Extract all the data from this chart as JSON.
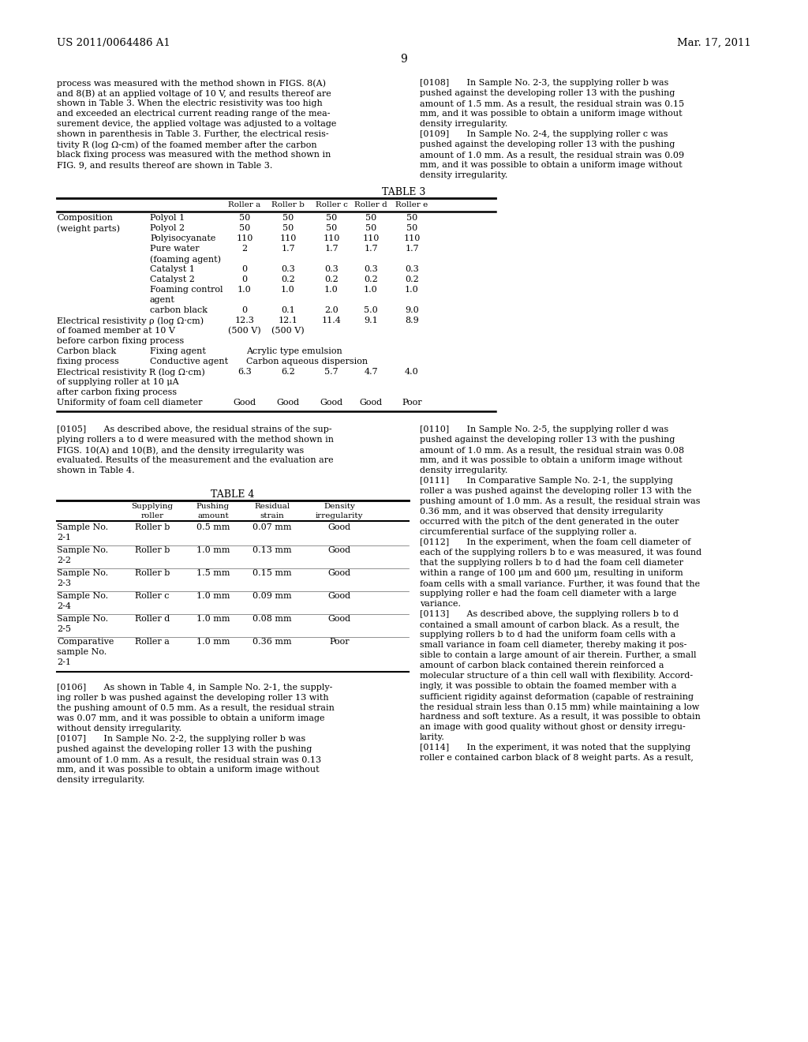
{
  "header_left": "US 2011/0064486 A1",
  "header_right": "Mar. 17, 2011",
  "page_number": "9",
  "bg_color": "#ffffff",
  "left_col_text": [
    "process was measured with the method shown in FIGS. 8(A)",
    "and 8(B) at an applied voltage of 10 V, and results thereof are",
    "shown in Table 3. When the electric resistivity was too high",
    "and exceeded an electrical current reading range of the mea-",
    "surement device, the applied voltage was adjusted to a voltage",
    "shown in parenthesis in Table 3. Further, the electrical resis-",
    "tivity R (log Ω-cm) of the foamed member after the carbon",
    "black fixing process was measured with the method shown in",
    "FIG. 9, and results thereof are shown in Table 3."
  ],
  "right_col_text_1": [
    "[0108]  In Sample No. 2-3, the supplying roller b was",
    "pushed against the developing roller 13 with the pushing",
    "amount of 1.5 mm. As a result, the residual strain was 0.15",
    "mm, and it was possible to obtain a uniform image without",
    "density irregularity.",
    "[0109]  In Sample No. 2-4, the supplying roller c was",
    "pushed against the developing roller 13 with the pushing",
    "amount of 1.0 mm. As a result, the residual strain was 0.09",
    "mm, and it was possible to obtain a uniform image without",
    "density irregularity."
  ],
  "table3_title": "TABLE 3",
  "table3_rows": [
    [
      "Composition",
      "Polyol 1",
      "50",
      "50",
      "50",
      "50",
      "50"
    ],
    [
      "(weight parts)",
      "Polyol 2",
      "50",
      "50",
      "50",
      "50",
      "50"
    ],
    [
      "",
      "Polyisocyanate",
      "110",
      "110",
      "110",
      "110",
      "110"
    ],
    [
      "",
      "Pure water",
      "2",
      "1.7",
      "1.7",
      "1.7",
      "1.7"
    ],
    [
      "",
      "(foaming agent)",
      "",
      "",
      "",
      "",
      ""
    ],
    [
      "",
      "Catalyst 1",
      "0",
      "0.3",
      "0.3",
      "0.3",
      "0.3"
    ],
    [
      "",
      "Catalyst 2",
      "0",
      "0.2",
      "0.2",
      "0.2",
      "0.2"
    ],
    [
      "",
      "Foaming control",
      "1.0",
      "1.0",
      "1.0",
      "1.0",
      "1.0"
    ],
    [
      "",
      "agent",
      "",
      "",
      "",
      "",
      ""
    ],
    [
      "",
      "carbon black",
      "0",
      "0.1",
      "2.0",
      "5.0",
      "9.0"
    ]
  ],
  "table3_resistivity_vals": [
    "12.3",
    "12.1",
    "11.4",
    "9.1",
    "8.9"
  ],
  "table3_resistivity_note": [
    "(500 V)",
    "(500 V)",
    "",
    "",
    ""
  ],
  "table3_elec_resist_vals": [
    "6.3",
    "6.2",
    "5.7",
    "4.7",
    "4.0"
  ],
  "table3_uniformity_vals": [
    "Good",
    "Good",
    "Good",
    "Good",
    "Poor"
  ],
  "table4_title": "TABLE 4",
  "table4_rows": [
    [
      "Sample No.",
      "Roller b",
      "0.5 mm",
      "0.07 mm",
      "Good"
    ],
    [
      "2-1",
      "",
      "",
      "",
      ""
    ],
    [
      "Sample No.",
      "Roller b",
      "1.0 mm",
      "0.13 mm",
      "Good"
    ],
    [
      "2-2",
      "",
      "",
      "",
      ""
    ],
    [
      "Sample No.",
      "Roller b",
      "1.5 mm",
      "0.15 mm",
      "Good"
    ],
    [
      "2-3",
      "",
      "",
      "",
      ""
    ],
    [
      "Sample No.",
      "Roller c",
      "1.0 mm",
      "0.09 mm",
      "Good"
    ],
    [
      "2-4",
      "",
      "",
      "",
      ""
    ],
    [
      "Sample No.",
      "Roller d",
      "1.0 mm",
      "0.08 mm",
      "Good"
    ],
    [
      "2-5",
      "",
      "",
      "",
      ""
    ],
    [
      "Comparative",
      "Roller a",
      "1.0 mm",
      "0.36 mm",
      "Poor"
    ],
    [
      "sample No.",
      "",
      "",
      "",
      ""
    ],
    [
      "2-1",
      "",
      "",
      "",
      ""
    ]
  ],
  "right_col_text_2": [
    "[0110]  In Sample No. 2-5, the supplying roller d was",
    "pushed against the developing roller 13 with the pushing",
    "amount of 1.0 mm. As a result, the residual strain was 0.08",
    "mm, and it was possible to obtain a uniform image without",
    "density irregularity.",
    "[0111]  In Comparative Sample No. 2-1, the supplying",
    "roller a was pushed against the developing roller 13 with the",
    "pushing amount of 1.0 mm. As a result, the residual strain was",
    "0.36 mm, and it was observed that density irregularity",
    "occurred with the pitch of the dent generated in the outer",
    "circumferential surface of the supplying roller a.",
    "[0112]  In the experiment, when the foam cell diameter of",
    "each of the supplying rollers b to e was measured, it was found",
    "that the supplying rollers b to d had the foam cell diameter",
    "within a range of 100 μm and 600 μm, resulting in uniform",
    "foam cells with a small variance. Further, it was found that the",
    "supplying roller e had the foam cell diameter with a large",
    "variance.",
    "[0113]  As described above, the supplying rollers b to d",
    "contained a small amount of carbon black. As a result, the",
    "supplying rollers b to d had the uniform foam cells with a",
    "small variance in foam cell diameter, thereby making it pos-",
    "sible to contain a large amount of air therein. Further, a small",
    "amount of carbon black contained therein reinforced a",
    "molecular structure of a thin cell wall with flexibility. Accord-",
    "ingly, it was possible to obtain the foamed member with a",
    "sufficient rigidity against deformation (capable of restraining",
    "the residual strain less than 0.15 mm) while maintaining a low",
    "hardness and soft texture. As a result, it was possible to obtain",
    "an image with good quality without ghost or density irregu-",
    "larity.",
    "[0114]  In the experiment, it was noted that the supplying",
    "roller e contained carbon black of 8 weight parts. As a result,"
  ],
  "left_col_text_2": [
    "[0106]  As shown in Table 4, in Sample No. 2-1, the supply-",
    "ing roller b was pushed against the developing roller 13 with",
    "the pushing amount of 0.5 mm. As a result, the residual strain",
    "was 0.07 mm, and it was possible to obtain a uniform image",
    "without density irregularity.",
    "[0107]  In Sample No. 2-2, the supplying roller b was",
    "pushed against the developing roller 13 with the pushing",
    "amount of 1.0 mm. As a result, the residual strain was 0.13",
    "mm, and it was possible to obtain a uniform image without",
    "density irregularity."
  ]
}
